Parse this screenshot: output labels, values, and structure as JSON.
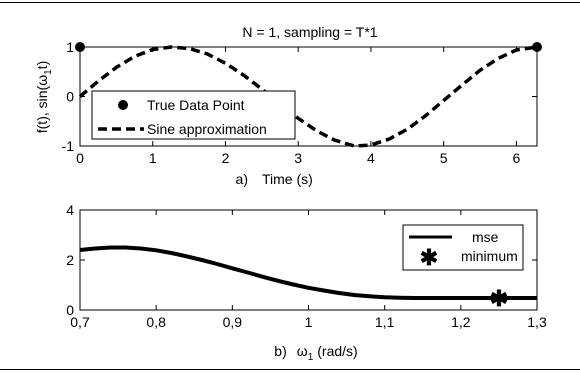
{
  "chart_data": [
    {
      "type": "line",
      "title": "N = 1, sampling = T*1",
      "xlabel_prefix": "a)",
      "xlabel": "Time (s)",
      "ylabel_main": "f(t), sin(ω",
      "ylabel_sub": "1",
      "ylabel_end": "t)",
      "xlim": [
        0,
        6.283
      ],
      "ylim": [
        -1,
        1
      ],
      "xticks": [
        "0",
        "1",
        "2",
        "3",
        "4",
        "5",
        "6"
      ],
      "yticks": [
        "-1",
        "0",
        "1"
      ],
      "grid": false,
      "legend_position": "bottom-left",
      "series": [
        {
          "name": "True Data Point",
          "marker": "filled-circle",
          "x": [
            0,
            6.283
          ],
          "y": [
            1,
            1
          ]
        },
        {
          "name": "Sine approximation",
          "style": "dashed",
          "x": [
            0,
            0.25,
            0.5,
            0.75,
            1.0,
            1.257,
            1.5,
            1.75,
            2.0,
            2.25,
            2.5,
            2.75,
            3.0,
            3.25,
            3.5,
            3.77,
            4.0,
            4.25,
            4.5,
            4.75,
            5.0,
            5.25,
            5.5,
            5.75,
            6.0,
            6.283
          ],
          "y": [
            0,
            0.31,
            0.59,
            0.81,
            0.95,
            1.0,
            0.97,
            0.86,
            0.67,
            0.43,
            0.15,
            -0.15,
            -0.44,
            -0.69,
            -0.88,
            -1.0,
            -0.98,
            -0.86,
            -0.66,
            -0.39,
            -0.08,
            0.23,
            0.53,
            0.77,
            0.94,
            1.0
          ]
        }
      ]
    },
    {
      "type": "line",
      "xlabel_prefix": "b)",
      "xlabel_main": "ω",
      "xlabel_sub": "1",
      "xlabel_end": "(rad/s)",
      "xlim": [
        0.7,
        1.3
      ],
      "ylim": [
        0,
        4
      ],
      "xticks": [
        "0,7",
        "0,8",
        "0,9",
        "1",
        "1,1",
        "1,2",
        "1,3"
      ],
      "yticks": [
        "0",
        "2",
        "4"
      ],
      "grid": false,
      "legend_position": "top-right",
      "series": [
        {
          "name": "mse",
          "style": "solid",
          "x": [
            0.7,
            0.72,
            0.74,
            0.76,
            0.78,
            0.8,
            0.82,
            0.84,
            0.86,
            0.88,
            0.9,
            0.92,
            0.94,
            0.96,
            0.98,
            1.0,
            1.02,
            1.04,
            1.06,
            1.08,
            1.1,
            1.12,
            1.14,
            1.16,
            1.18,
            1.2,
            1.22,
            1.24,
            1.26,
            1.28,
            1.3
          ],
          "y": [
            2.4,
            2.46,
            2.5,
            2.5,
            2.46,
            2.39,
            2.28,
            2.15,
            2.0,
            1.84,
            1.67,
            1.5,
            1.33,
            1.17,
            1.02,
            0.89,
            0.78,
            0.68,
            0.6,
            0.55,
            0.51,
            0.49,
            0.48,
            0.48,
            0.48,
            0.48,
            0.48,
            0.48,
            0.48,
            0.48,
            0.48
          ]
        },
        {
          "name": "minimum",
          "marker": "asterisk",
          "x": [
            1.25
          ],
          "y": [
            0.48
          ]
        }
      ]
    }
  ]
}
